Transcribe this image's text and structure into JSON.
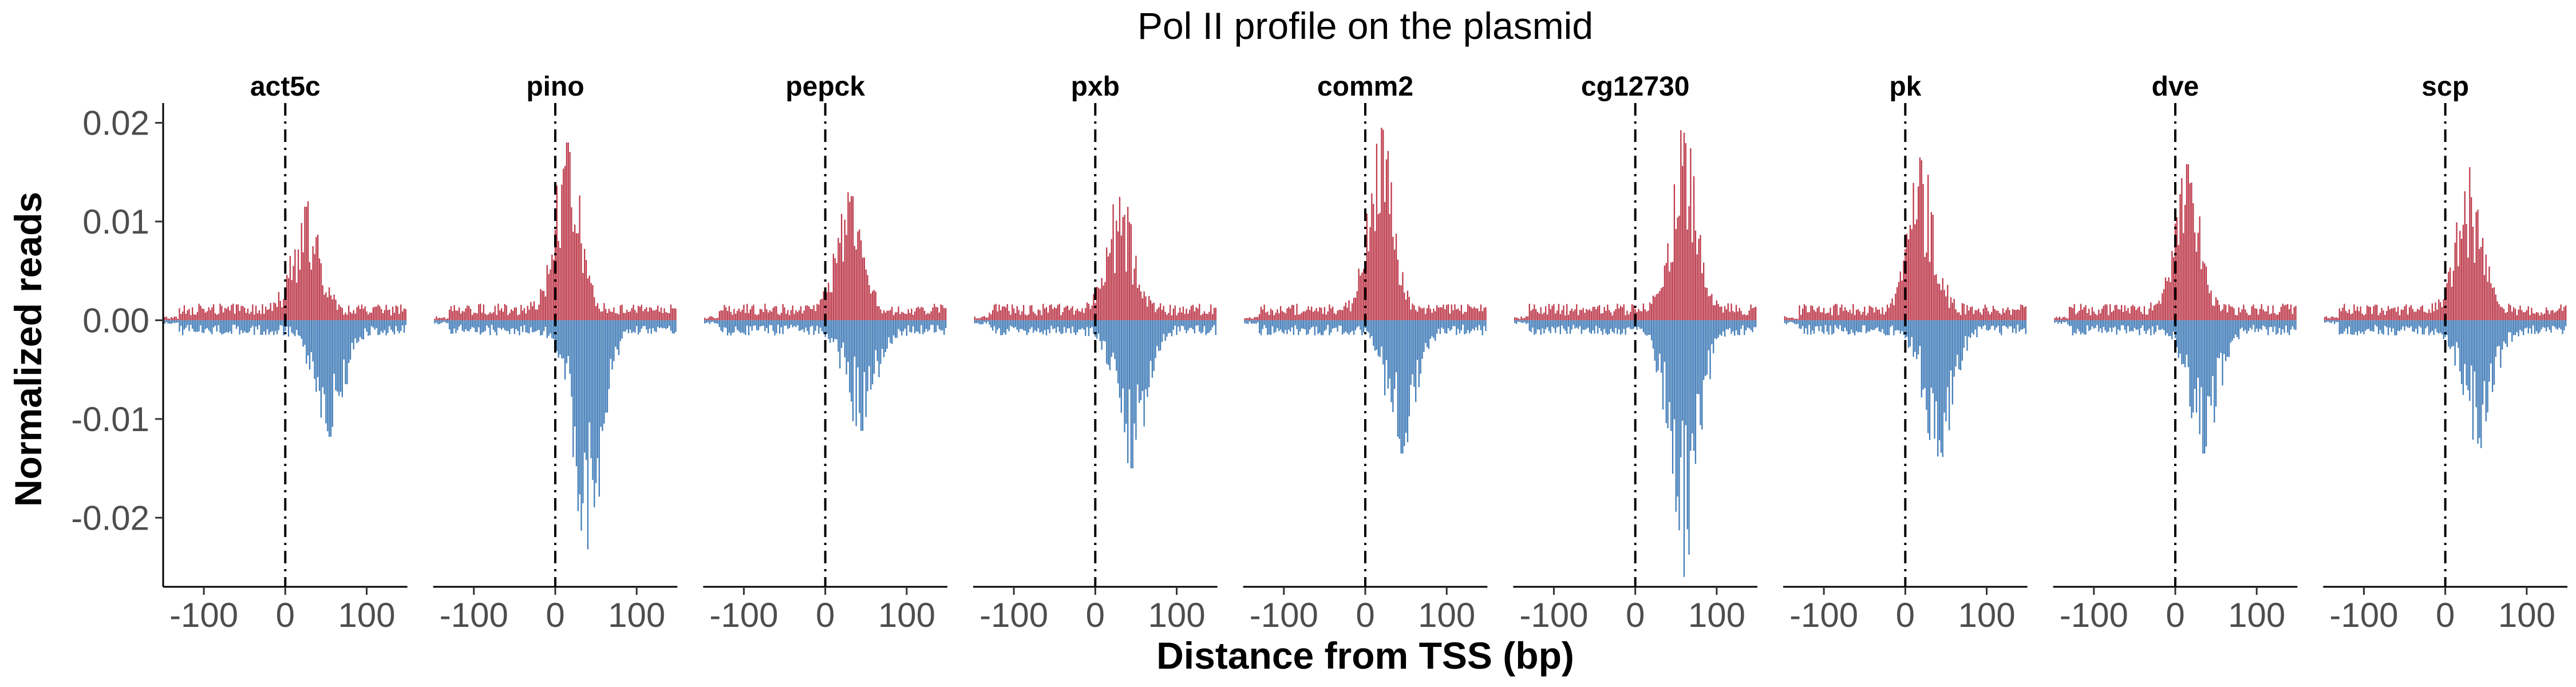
{
  "chart_data": {
    "type": "bar",
    "title": "Pol II profile on the plasmid",
    "xlabel": "Distance from TSS (bp)",
    "ylabel": "Normalized reads",
    "xlim": [
      -150,
      150
    ],
    "ylim": [
      -0.027,
      0.022
    ],
    "x_ticks": [
      -100,
      0,
      100
    ],
    "x_tick_labels": [
      "-100",
      "0",
      "100"
    ],
    "y_ticks": [
      -0.02,
      -0.01,
      0.0,
      0.01,
      0.02
    ],
    "y_tick_labels": [
      "-0.02",
      "-0.01",
      "0.00",
      "0.01",
      "0.02"
    ],
    "reference_line": {
      "x": 0,
      "style": "dot-dash"
    },
    "grid": false,
    "colors": {
      "sense": "#b2182b",
      "antisense": "#2166ac",
      "reference": "#000000"
    },
    "facets": [
      {
        "label": "act5c",
        "peak_pos": 0.0115,
        "peak_pos_x": 25,
        "peak_neg": -0.0118,
        "peak_neg_x": 55
      },
      {
        "label": "pino",
        "peak_pos": 0.018,
        "peak_pos_x": 15,
        "peak_neg": -0.0232,
        "peak_neg_x": 40
      },
      {
        "label": "pepck",
        "peak_pos": 0.012,
        "peak_pos_x": 30,
        "peak_neg": -0.0112,
        "peak_neg_x": 45
      },
      {
        "label": "pxb",
        "peak_pos": 0.0125,
        "peak_pos_x": 30,
        "peak_neg": -0.015,
        "peak_neg_x": 45
      },
      {
        "label": "comm2",
        "peak_pos": 0.0195,
        "peak_pos_x": 20,
        "peak_neg": -0.0135,
        "peak_neg_x": 45
      },
      {
        "label": "cg12730",
        "peak_pos": 0.019,
        "peak_pos_x": 60,
        "peak_neg": -0.026,
        "peak_neg_x": 60
      },
      {
        "label": "pk",
        "peak_pos": 0.0162,
        "peak_pos_x": 20,
        "peak_neg": -0.0138,
        "peak_neg_x": 40
      },
      {
        "label": "dve",
        "peak_pos": 0.0158,
        "peak_pos_x": 15,
        "peak_neg": -0.0135,
        "peak_neg_x": 35
      },
      {
        "label": "scp",
        "peak_pos": 0.0155,
        "peak_pos_x": 30,
        "peak_neg": -0.0125,
        "peak_neg_x": 40
      }
    ]
  }
}
